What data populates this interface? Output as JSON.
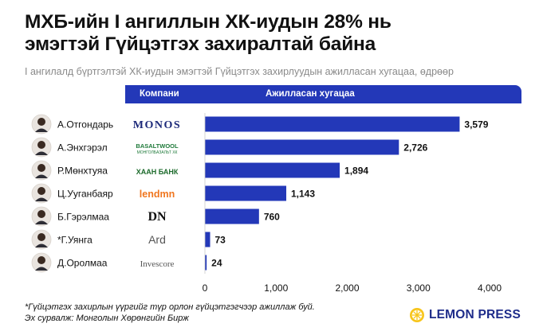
{
  "header": {
    "title_line1": "МХБ-ийн I ангиллын ХК-иудын 28% нь",
    "title_line2": "эмэгтэй Гүйцэтгэх захиралтай байна",
    "subtitle": "I ангилалд бүртгэлтэй ХК-иудын эмэгтэй Гүйцэтгэх захирлуудын ажилласан хугацаа, өдрөөр",
    "col_company": "Компани",
    "col_duration": "Ажилласан хугацаа"
  },
  "chart_data": {
    "type": "bar",
    "orientation": "horizontal",
    "title": "МХБ-ийн I ангиллын ХК-иудын 28% нь эмэгтэй Гүйцэтгэх захиралтай байна",
    "subtitle": "I ангилалд бүртгэлтэй ХК-иудын эмэгтэй Гүйцэтгэх захирлуудын ажилласан хугацаа, өдрөөр",
    "xlabel": "Ажилласан хугацаа",
    "ylabel": "",
    "xlim": [
      0,
      4000
    ],
    "xticks": [
      0,
      1000,
      2000,
      3000,
      4000
    ],
    "xtick_labels": [
      "0",
      "1,000",
      "2,000",
      "3,000",
      "4,000"
    ],
    "grid": false,
    "bar_color": "#2338b8",
    "categories": [
      "А.Отгондарь",
      "А.Энхгэрэл",
      "Р.Мөнхтуяа",
      "Ц.Ууганбаяр",
      "Б.Гэрэлмаа",
      "*Г.Уянга",
      "Д.Оролмаа"
    ],
    "values": [
      3579,
      2726,
      1894,
      1143,
      760,
      73,
      24
    ],
    "value_labels": [
      "3,579",
      "2,726",
      "1,894",
      "1,143",
      "760",
      "73",
      "24"
    ],
    "companies": [
      "MONOS",
      "BASALTWOOL",
      "ХААН БАНК",
      "lendmn",
      "DN",
      "Ard",
      "Invescore"
    ],
    "company_sublabels": [
      "",
      "МОНГОЛБАЗАЛЬТ ХК",
      "",
      "",
      "",
      "",
      ""
    ],
    "company_colors": [
      "#1d2a7a",
      "#1f7a3a",
      "#1d6b2c",
      "#f0761f",
      "#111111",
      "#555555",
      "#555555"
    ]
  },
  "footer": {
    "note": "*Гүйцэтгэх захирлын үүргийг түр орлон гүйцэтгэгчээр ажиллаж буй.",
    "source": "Эх сурвалж: Монголын Хөрөнгийн Бирж",
    "brand": "LEMON PRESS"
  },
  "colors": {
    "accent": "#2338b8",
    "brand": "#1e2c8a",
    "lemon": "#f7c51b"
  }
}
